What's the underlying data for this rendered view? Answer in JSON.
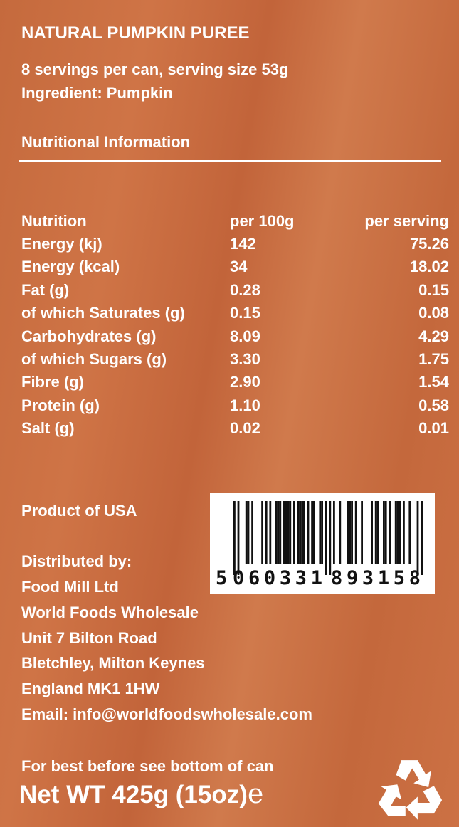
{
  "product": {
    "title": "NATURAL PUMPKIN PUREE",
    "servings": "8 servings per can, serving size 53g",
    "ingredient": "Ingredient: Pumpkin"
  },
  "nutrition": {
    "heading": "Nutritional Information",
    "columns": [
      "Nutrition",
      "per 100g",
      "per serving"
    ],
    "rows": [
      [
        "Energy (kj)",
        "142",
        "75.26"
      ],
      [
        "Energy (kcal)",
        "34",
        "18.02"
      ],
      [
        "Fat (g)",
        "0.28",
        "0.15"
      ],
      [
        "of which Saturates (g)",
        "0.15",
        "0.08"
      ],
      [
        "Carbohydrates (g)",
        "8.09",
        "4.29"
      ],
      [
        "of which Sugars (g)",
        "3.30",
        "1.75"
      ],
      [
        "Fibre (g)",
        "2.90",
        "1.54"
      ],
      [
        "Protein (g)",
        "1.10",
        "0.58"
      ],
      [
        "Salt (g)",
        "0.02",
        "0.01"
      ]
    ]
  },
  "origin": "Product of USA",
  "distributor": {
    "label": "Distributed by:",
    "lines": [
      "Food Mill Ltd",
      "World Foods Wholesale",
      "Unit 7 Bilton Road",
      "Bletchley, Milton Keynes",
      "England MK1 1HW",
      "Email: info@worldfoodswholesale.com"
    ]
  },
  "barcode": {
    "number": "5060331893158",
    "first": "5",
    "left": "060331",
    "right": "893158"
  },
  "footer": {
    "best_before": "For best before see bottom of can",
    "net_weight": "Net WT 425g (15oz)",
    "estimated_mark": "e",
    "icon": "recycle-icon"
  },
  "colors": {
    "background": "#c96d40",
    "text": "#ffffff"
  }
}
